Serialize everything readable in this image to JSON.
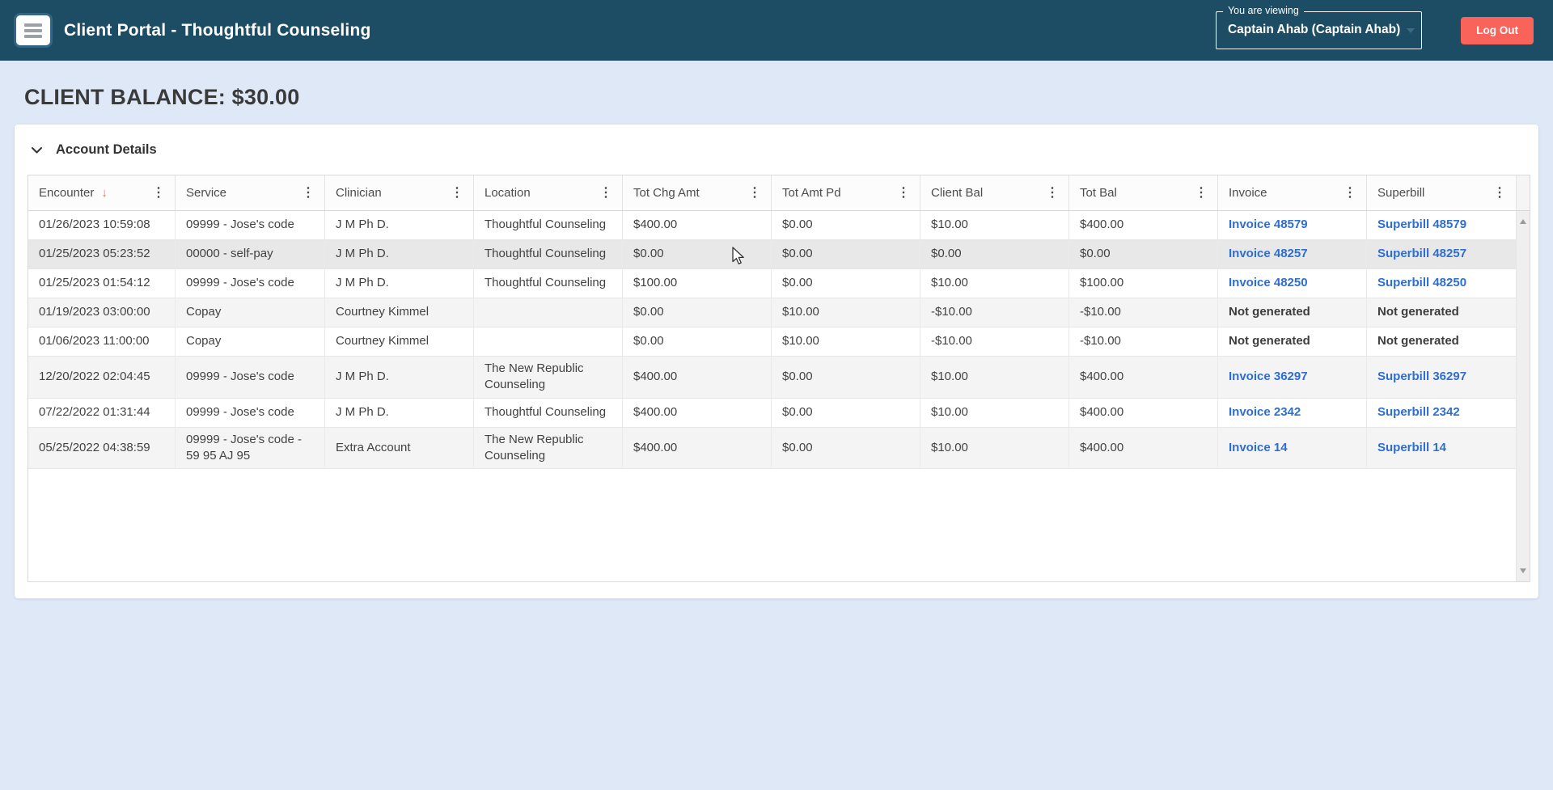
{
  "colors": {
    "header_bg": "#1c4d64",
    "page_bg": "#dee8f6",
    "logout_bg": "#f9635a",
    "link_color": "#2d6ed3",
    "sort_arrow": "#ef6a60"
  },
  "header": {
    "title": "Client Portal - Thoughtful Counseling",
    "viewing_label": "You are viewing",
    "viewing_value": "Captain Ahab (Captain Ahab)",
    "logout_label": "Log Out"
  },
  "page": {
    "balance_heading": "CLIENT BALANCE: $30.00",
    "panel_title": "Account Details"
  },
  "table": {
    "columns": [
      {
        "key": "encounter",
        "label": "Encounter",
        "sort": "desc"
      },
      {
        "key": "service",
        "label": "Service"
      },
      {
        "key": "clinician",
        "label": "Clinician"
      },
      {
        "key": "location",
        "label": "Location"
      },
      {
        "key": "tot_chg_amt",
        "label": "Tot Chg Amt"
      },
      {
        "key": "tot_amt_pd",
        "label": "Tot Amt Pd"
      },
      {
        "key": "client_bal",
        "label": "Client Bal"
      },
      {
        "key": "tot_bal",
        "label": "Tot Bal"
      },
      {
        "key": "invoice",
        "label": "Invoice"
      },
      {
        "key": "superbill",
        "label": "Superbill"
      }
    ],
    "rows": [
      {
        "encounter": "01/26/2023 10:59:08",
        "service": "09999 - Jose's code",
        "clinician": "J M Ph D.",
        "location": "Thoughtful Counseling",
        "tot_chg_amt": "$400.00",
        "tot_amt_pd": "$0.00",
        "client_bal": "$10.00",
        "tot_bal": "$400.00",
        "invoice": "Invoice 48579",
        "superbill": "Superbill 48579",
        "links": true
      },
      {
        "encounter": "01/25/2023 05:23:52",
        "service": "00000 - self-pay",
        "clinician": "J M Ph D.",
        "location": "Thoughtful Counseling",
        "tot_chg_amt": "$0.00",
        "tot_amt_pd": "$0.00",
        "client_bal": "$0.00",
        "tot_bal": "$0.00",
        "invoice": "Invoice 48257",
        "superbill": "Superbill 48257",
        "links": true
      },
      {
        "encounter": "01/25/2023 01:54:12",
        "service": "09999 - Jose's code",
        "clinician": "J M Ph D.",
        "location": "Thoughtful Counseling",
        "tot_chg_amt": "$100.00",
        "tot_amt_pd": "$0.00",
        "client_bal": "$10.00",
        "tot_bal": "$100.00",
        "invoice": "Invoice 48250",
        "superbill": "Superbill 48250",
        "links": true
      },
      {
        "encounter": "01/19/2023 03:00:00",
        "service": "Copay",
        "clinician": "Courtney Kimmel",
        "location": "",
        "tot_chg_amt": "$0.00",
        "tot_amt_pd": "$10.00",
        "client_bal": "-$10.00",
        "tot_bal": "-$10.00",
        "invoice": "Not generated",
        "superbill": "Not generated",
        "links": false
      },
      {
        "encounter": "01/06/2023 11:00:00",
        "service": "Copay",
        "clinician": "Courtney Kimmel",
        "location": "",
        "tot_chg_amt": "$0.00",
        "tot_amt_pd": "$10.00",
        "client_bal": "-$10.00",
        "tot_bal": "-$10.00",
        "invoice": "Not generated",
        "superbill": "Not generated",
        "links": false
      },
      {
        "encounter": "12/20/2022 02:04:45",
        "service": "09999 - Jose's code",
        "clinician": "J M Ph D.",
        "location": "The New Republic Counseling",
        "tot_chg_amt": "$400.00",
        "tot_amt_pd": "$0.00",
        "client_bal": "$10.00",
        "tot_bal": "$400.00",
        "invoice": "Invoice 36297",
        "superbill": "Superbill 36297",
        "links": true
      },
      {
        "encounter": "07/22/2022 01:31:44",
        "service": "09999 - Jose's code",
        "clinician": "J M Ph D.",
        "location": "Thoughtful Counseling",
        "tot_chg_amt": "$400.00",
        "tot_amt_pd": "$0.00",
        "client_bal": "$10.00",
        "tot_bal": "$400.00",
        "invoice": "Invoice 2342",
        "superbill": "Superbill 2342",
        "links": true
      },
      {
        "encounter": "05/25/2022 04:38:59",
        "service": "09999 - Jose's code - 59 95 AJ 95",
        "clinician": "Extra Account",
        "location": "The New Republic Counseling",
        "tot_chg_amt": "$400.00",
        "tot_amt_pd": "$0.00",
        "client_bal": "$10.00",
        "tot_bal": "$400.00",
        "invoice": "Invoice 14",
        "superbill": "Superbill 14",
        "links": true
      }
    ],
    "hovered_row_index": 1
  },
  "icons": {
    "menu": "hamburger-icon",
    "sort_desc": "↓",
    "column_menu": "⋮"
  }
}
